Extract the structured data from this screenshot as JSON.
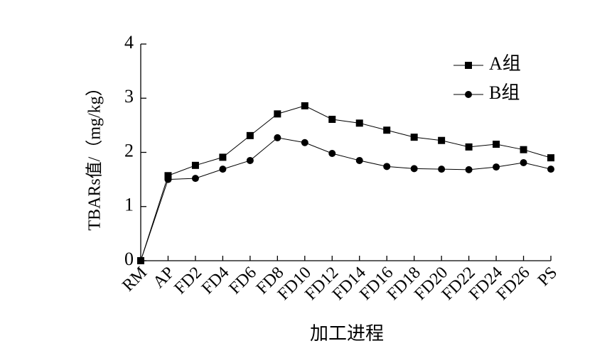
{
  "chart_data": {
    "type": "line",
    "x_label": "加工进程",
    "y_label": "TBARs值/（mg/kg）",
    "categories": [
      "RM",
      "AP",
      "FD2",
      "FD4",
      "FD6",
      "FD8",
      "FD10",
      "FD12",
      "FD14",
      "FD16",
      "FD18",
      "FD20",
      "FD22",
      "FD24",
      "FD26",
      "PS"
    ],
    "series": [
      {
        "name": "A组",
        "color": "#000000",
        "marker": "square",
        "values": [
          0,
          1.57,
          1.76,
          1.91,
          2.31,
          2.71,
          2.86,
          2.61,
          2.54,
          2.41,
          2.28,
          2.22,
          2.1,
          2.15,
          2.05,
          1.9
        ]
      },
      {
        "name": "B组",
        "color": "#000000",
        "marker": "circle",
        "values": [
          0,
          1.5,
          1.52,
          1.69,
          1.85,
          2.27,
          2.18,
          1.98,
          1.85,
          1.74,
          1.7,
          1.69,
          1.68,
          1.73,
          1.81,
          1.69
        ]
      }
    ],
    "ylim": [
      0,
      4
    ],
    "yticks": [
      0,
      1,
      2,
      3,
      4
    ],
    "grid": false,
    "legend": "upper right"
  }
}
